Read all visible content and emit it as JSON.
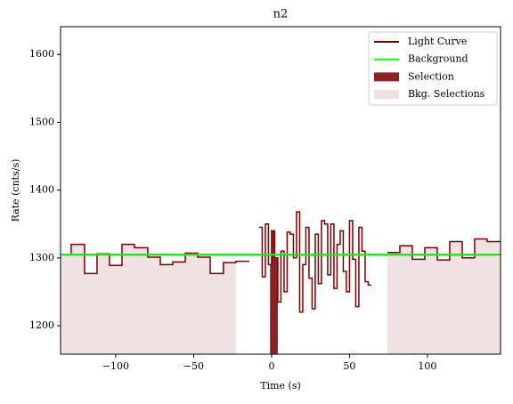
{
  "chart_data": {
    "type": "lightcurve",
    "title": "n2",
    "x_label": "Time (s)",
    "y_label": "Rate (cnts/s)",
    "xlim": [
      -135.4,
      146.9
    ],
    "ylim": [
      1158,
      1641
    ],
    "xticks": [
      {
        "value": -100,
        "label": "−100"
      },
      {
        "value": -50,
        "label": "−50"
      },
      0,
      50,
      100
    ],
    "yticks": [
      1200,
      1300,
      1400,
      1500,
      1600
    ],
    "legend": "upper right",
    "series": [
      {
        "name": "Light Curve",
        "color": "#7a0000",
        "step": "post",
        "x": [
          -135.4,
          -128.6,
          -120,
          -112,
          -104,
          -96,
          -88,
          -79.4,
          -71.4,
          -63.4,
          -55.4,
          -47.4,
          -39.4,
          -30.9,
          -22.9,
          -14.3,
          null,
          -8,
          -6,
          -4,
          -2,
          0,
          2,
          4,
          6,
          8,
          10,
          12,
          14,
          16,
          18,
          20,
          22,
          24,
          26,
          28,
          30,
          32,
          34,
          36,
          38,
          40,
          42,
          44,
          46,
          48,
          50,
          52,
          54,
          56,
          58,
          60,
          62,
          64,
          null,
          74.3,
          82.3,
          90.3,
          98.3,
          106.3,
          114.3,
          122.3,
          130.3,
          138.3,
          146.9
        ],
        "values": [
          1305,
          1320,
          1277,
          1306,
          1289,
          1320,
          1315,
          1301,
          1290,
          1294,
          1307,
          1301,
          1277,
          1293,
          1295,
          1295,
          null,
          1345,
          1272,
          1350,
          1290,
          1340,
          1300,
          1235,
          1310,
          1250,
          1338,
          1335,
          1300,
          1368,
          1220,
          1290,
          1345,
          1270,
          1225,
          1335,
          1262,
          1355,
          1350,
          1275,
          1350,
          1255,
          1320,
          1340,
          1280,
          1250,
          1355,
          1298,
          1228,
          1345,
          1310,
          1265,
          1260,
          1260,
          null,
          1308,
          1318,
          1298,
          1315,
          1297,
          1324,
          1300,
          1328,
          1324,
          1324
        ]
      },
      {
        "name": "Background",
        "color": "#00ff00",
        "x": [
          -135.4,
          146.9
        ],
        "values": [
          1305,
          1305
        ]
      }
    ],
    "selection": {
      "name": "Selection",
      "color": "#8b2323",
      "range": [
        -1,
        4
      ]
    },
    "bkg_selections": {
      "name": "Bkg. Selections",
      "color": "#efdfe0",
      "ranges": [
        [
          -135.4,
          -22.9
        ],
        [
          74.3,
          146.9
        ]
      ]
    }
  }
}
